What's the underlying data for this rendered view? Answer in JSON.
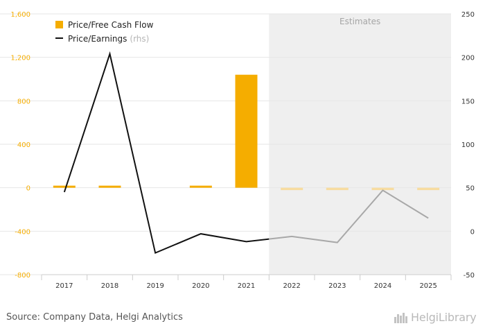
{
  "chart_data": {
    "type": "bar+line",
    "categories": [
      "2017",
      "2018",
      "2019",
      "2020",
      "2021",
      "2022",
      "2023",
      "2024",
      "2025"
    ],
    "estimate_start_index": 5,
    "estimates_label": "Estimates",
    "left_axis": {
      "ticks": [
        -800,
        -400,
        0,
        400,
        800,
        1200,
        1600
      ],
      "tick_labels": [
        "-800",
        "-400",
        "0",
        "400",
        "800",
        "1,200",
        "1,600"
      ],
      "range": [
        -800,
        1600
      ]
    },
    "right_axis": {
      "ticks": [
        -50,
        0,
        50,
        100,
        150,
        200,
        250
      ],
      "tick_labels": [
        "-50",
        "0",
        "50",
        "100",
        "150",
        "200",
        "250"
      ],
      "range": [
        -50,
        250
      ]
    },
    "series": [
      {
        "name": "Price/Free Cash Flow",
        "type": "bar",
        "axis": "left",
        "values": [
          10,
          15,
          0,
          15,
          1040,
          -22,
          -22,
          -22,
          -22
        ]
      },
      {
        "name": "Price/Earnings",
        "suffix": "(rhs)",
        "type": "line",
        "axis": "right",
        "values": [
          45,
          204,
          -25,
          -3,
          -12,
          -6,
          -13,
          47,
          15
        ]
      }
    ],
    "colors": {
      "bar": "#f5ad00",
      "bar_estimate": "#f7dca0",
      "line": "#111111",
      "line_estimate": "#a8a8a8",
      "estimates_bg": "#efefef",
      "grid": "#e6e6e6",
      "left_tick": "#f5ad00"
    }
  },
  "footer": {
    "source": "Source: Company Data, Helgi Analytics",
    "brand": "HelgiLibrary"
  }
}
